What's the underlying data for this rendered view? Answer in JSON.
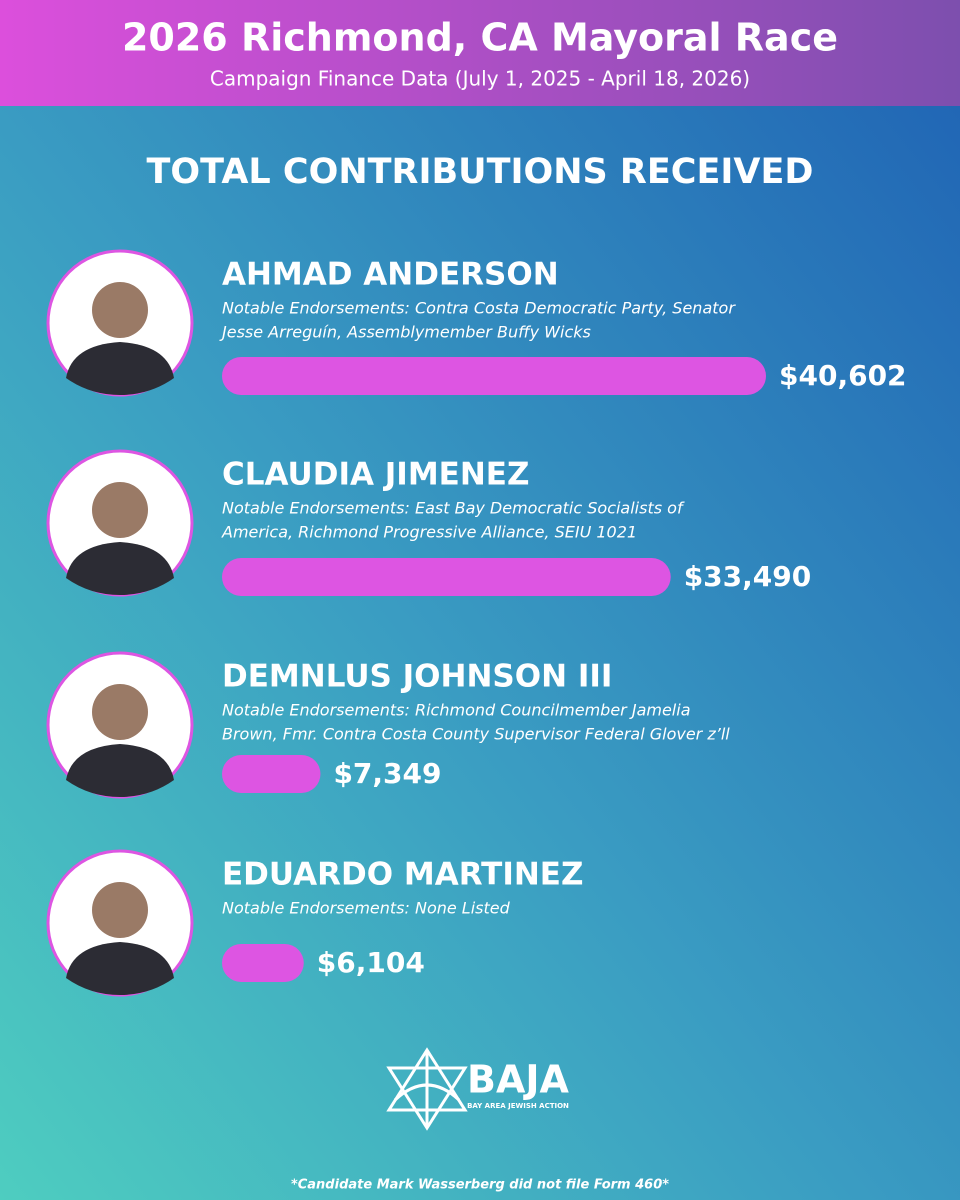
{
  "chart_data": {
    "type": "bar",
    "title": "2026 Richmond, CA Mayoral Race",
    "subtitle": "Campaign Finance Data (July 1, 2025 - April 18, 2026)",
    "heading": "TOTAL CONTRIBUTIONS RECEIVED",
    "categories": [
      "AHMAD ANDERSON",
      "CLAUDIA JIMENEZ",
      "DEMNLUS JOHNSON III",
      "EDUARDO MARTINEZ"
    ],
    "endorsements": [
      [
        "Notable Endorsements: Contra Costa Democratic Party, Senator",
        "Jesse Arreguín, Assemblymember Buffy Wicks"
      ],
      [
        "Notable Endorsements: East Bay Democratic Socialists of",
        "America, Richmond Progressive Alliance, SEIU 1021"
      ],
      [
        "Notable Endorsements: Richmond Councilmember Jamelia",
        "Brown, Fmr. Contra Costa County Supervisor Federal Glover z’ll"
      ],
      [
        "Notable Endorsements: None Listed"
      ]
    ],
    "values": [
      40602,
      33490,
      7349,
      6104
    ],
    "value_labels": [
      "$40,602",
      "$33,490",
      "$7,349",
      "$6,104"
    ],
    "color": "#dd55e2",
    "logo": "BAJA",
    "logo_tagline": "BAY AREA JEWISH ACTION",
    "footnote": "*Candidate Mark Wasserberg did not file Form 460*"
  }
}
